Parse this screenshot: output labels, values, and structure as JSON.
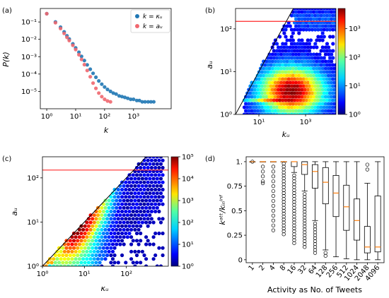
{
  "panels": {
    "a": {
      "label": "(a)"
    },
    "b": {
      "label": "(b)"
    },
    "c": {
      "label": "(c)"
    },
    "d": {
      "label": "(d)"
    }
  },
  "chart_data": [
    {
      "panel": "a",
      "type": "scatter",
      "scale": "log-log",
      "xlabel": "k",
      "ylabel": "P(k)",
      "xlim": [
        0.6,
        20000
      ],
      "ylim": [
        1e-06,
        0.6
      ],
      "x_ticks": [
        "10⁰",
        "10¹",
        "10²",
        "10³"
      ],
      "x_tick_values": [
        1,
        10,
        100,
        1000
      ],
      "y_ticks": [
        "10⁻⁵",
        "10⁻⁴",
        "10⁻³",
        "10⁻²",
        "10⁻¹"
      ],
      "y_tick_values": [
        1e-05,
        0.0001,
        0.001,
        0.01,
        0.1
      ],
      "legend_position": "top-right",
      "series": [
        {
          "name": "k = κᵤ",
          "color": "#1f77b4",
          "x": [
            1,
            2,
            3,
            4,
            5,
            6,
            8,
            10,
            13,
            16,
            20,
            25,
            32,
            40,
            50,
            63,
            80,
            100,
            126,
            160,
            200,
            250,
            320,
            400,
            500,
            630,
            800,
            1000,
            1300,
            1600,
            2000,
            2500,
            3200,
            4000,
            5000
          ],
          "y": [
            0.3,
            0.1,
            0.05,
            0.027,
            0.016,
            0.0105,
            0.0055,
            0.0032,
            0.0018,
            0.00105,
            0.0006,
            0.00034,
            0.00019,
            0.00011,
            6.5e-05,
            4e-05,
            2.6e-05,
            1.8e-05,
            1.3e-05,
            1e-05,
            8e-06,
            7e-06,
            5.5e-06,
            5e-06,
            4.5e-06,
            4e-06,
            3.5e-06,
            3.5e-06,
            3e-06,
            3e-06,
            2.5e-06,
            2.5e-06,
            2.5e-06,
            2.5e-06,
            2.5e-06
          ]
        },
        {
          "name": "k = aᵤ",
          "color": "#f0676f",
          "x": [
            1,
            2,
            3,
            4,
            5,
            6,
            8,
            10,
            13,
            16,
            20,
            25,
            32,
            40,
            50,
            63,
            80,
            100,
            126,
            160
          ],
          "y": [
            0.3,
            0.09,
            0.042,
            0.022,
            0.013,
            0.0085,
            0.0045,
            0.0026,
            0.0013,
            0.0007,
            0.00035,
            0.00016,
            7e-05,
            3e-05,
            1.5e-05,
            8e-06,
            5e-06,
            3.5e-06,
            2.8e-06,
            2.5e-06
          ]
        }
      ]
    },
    {
      "panel": "b",
      "type": "heatmap",
      "scale": "log-log",
      "xlabel": "kᵤ",
      "ylabel": "aᵤ",
      "xlim": [
        1,
        20000
      ],
      "ylim": [
        1,
        300
      ],
      "x_ticks": [
        "10¹",
        "10³"
      ],
      "x_tick_values": [
        10,
        1000
      ],
      "y_ticks": [
        "10⁰",
        "10¹",
        "10²"
      ],
      "y_tick_values": [
        1,
        10,
        100
      ],
      "hline": 150,
      "diagonal": "y = x",
      "colorbar": {
        "scale": "log",
        "range": [
          1,
          5000
        ],
        "ticks": [
          "10⁰",
          "10¹",
          "10²",
          "10³"
        ],
        "tick_values": [
          1,
          10,
          100,
          1000
        ]
      }
    },
    {
      "panel": "c",
      "type": "heatmap",
      "scale": "log-log",
      "xlabel": "κᵤ",
      "ylabel": "aᵤ",
      "xlim": [
        1,
        1000
      ],
      "ylim": [
        1,
        300
      ],
      "x_ticks": [
        "10⁰",
        "10¹",
        "10²"
      ],
      "x_tick_values": [
        1,
        10,
        100
      ],
      "y_ticks": [
        "10⁰",
        "10¹",
        "10²"
      ],
      "y_tick_values": [
        1,
        10,
        100
      ],
      "hline": 150,
      "diagonal": "y = x",
      "colorbar": {
        "scale": "log",
        "range": [
          1,
          100000
        ],
        "ticks": [
          "10⁰",
          "10¹",
          "10²",
          "10³",
          "10⁴",
          "10⁵"
        ],
        "tick_values": [
          1,
          10,
          100,
          1000,
          10000,
          100000
        ]
      }
    },
    {
      "panel": "d",
      "type": "box",
      "xlabel": "Activity as No. of Tweets",
      "ylabel": "kᵃᵗᵗ/kᵢₙⁱⁿᶠ",
      "ylim": [
        -0.03,
        1.05
      ],
      "y_ticks": [
        "0",
        "0.25",
        "0.5",
        "0.75",
        "1."
      ],
      "y_tick_values": [
        0,
        0.25,
        0.5,
        0.75,
        1
      ],
      "categories": [
        "1",
        "2",
        "4",
        "8",
        "16",
        "32",
        "64",
        "128",
        "256",
        "512",
        "1024",
        "2048",
        "4096"
      ],
      "boxes": [
        {
          "q1": 1,
          "median": 1,
          "q3": 1,
          "wlo": 1,
          "whi": 1,
          "outliers": [
            1
          ]
        },
        {
          "q1": 1,
          "median": 1,
          "q3": 1,
          "wlo": 1,
          "whi": 1,
          "outliers": [
            0.95,
            0.9,
            0.85,
            0.8,
            0.78
          ]
        },
        {
          "q1": 1,
          "median": 1,
          "q3": 1,
          "wlo": 1,
          "whi": 1,
          "outliers": [
            0.95,
            0.9,
            0.85,
            0.8,
            0.75,
            0.7,
            0.65,
            0.6,
            0.55,
            0.5,
            0.45,
            0.4,
            0.35,
            0.3
          ]
        },
        {
          "q1": 1,
          "median": 1,
          "q3": 1,
          "wlo": 1,
          "whi": 1,
          "outliers": [
            0.98,
            0.95,
            0.92,
            0.89,
            0.86,
            0.83,
            0.8,
            0.77,
            0.74,
            0.71,
            0.68,
            0.65,
            0.62,
            0.59,
            0.56,
            0.53,
            0.5,
            0.47,
            0.44,
            0.41,
            0.38,
            0.35,
            0.32,
            0.29,
            0.26
          ]
        },
        {
          "q1": 0.95,
          "median": 1,
          "q3": 1,
          "wlo": 0.89,
          "whi": 1,
          "outliers": [
            0.86,
            0.83,
            0.8,
            0.77,
            0.74,
            0.71,
            0.68,
            0.65,
            0.62,
            0.59,
            0.56,
            0.53,
            0.5,
            0.47,
            0.44,
            0.41,
            0.38,
            0.35,
            0.32,
            0.29,
            0.26,
            0.23,
            0.2,
            0.17
          ]
        },
        {
          "q1": 0.87,
          "median": 0.97,
          "q3": 1,
          "wlo": 0.7,
          "whi": 1,
          "outliers": [
            0.67,
            0.64,
            0.61,
            0.58,
            0.55,
            0.52,
            0.49,
            0.46,
            0.43,
            0.4,
            0.37,
            0.34,
            0.31,
            0.28,
            0.25,
            0.22,
            0.19,
            0.16,
            0.13
          ]
        },
        {
          "q1": 0.73,
          "median": 0.9,
          "q3": 0.97,
          "wlo": 0.4,
          "whi": 1,
          "outliers": [
            0.37,
            0.34,
            0.31,
            0.28,
            0.25,
            0.22,
            0.19,
            0.16,
            0.13,
            0.1,
            0.07
          ]
        },
        {
          "q1": 0.57,
          "median": 0.79,
          "q3": 0.94,
          "wlo": 0.1,
          "whi": 1,
          "outliers": [
            0.07,
            0.04
          ]
        },
        {
          "q1": 0.44,
          "median": 0.68,
          "q3": 0.86,
          "wlo": 0.03,
          "whi": 1,
          "outliers": []
        },
        {
          "q1": 0.3,
          "median": 0.54,
          "q3": 0.76,
          "wlo": 0.01,
          "whi": 1,
          "outliers": []
        },
        {
          "q1": 0.2,
          "median": 0.4,
          "q3": 0.62,
          "wlo": 0,
          "whi": 1,
          "outliers": []
        },
        {
          "q1": 0.07,
          "median": 0.13,
          "q3": 0.34,
          "wlo": 0,
          "whi": 0.78,
          "outliers": [
            0.92,
            0.97
          ]
        },
        {
          "q1": 0.08,
          "median": 0.13,
          "q3": 0.65,
          "wlo": 0,
          "whi": 1,
          "outliers": []
        }
      ]
    }
  ]
}
